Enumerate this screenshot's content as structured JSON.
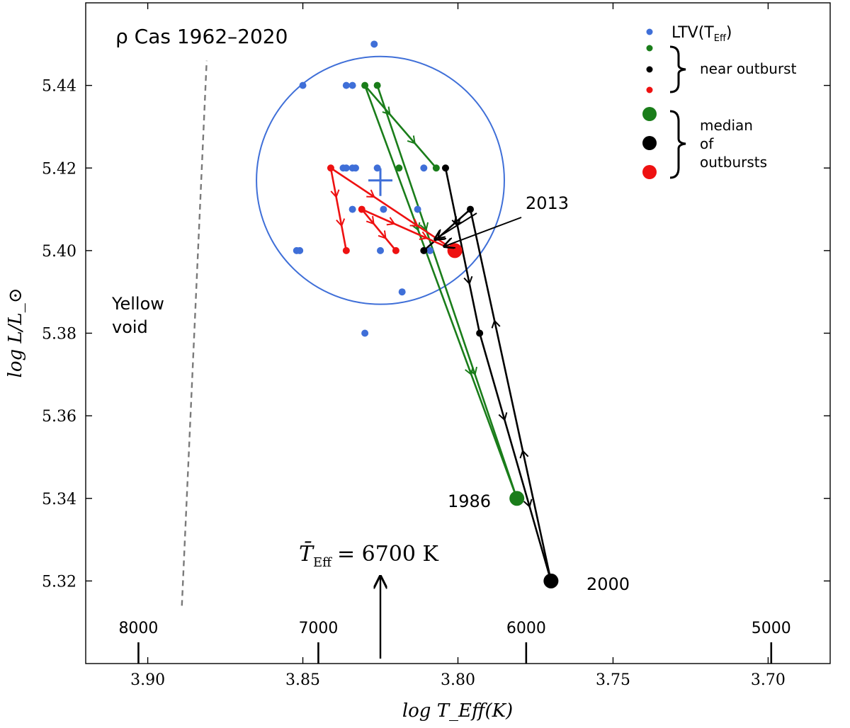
{
  "chart_data": {
    "type": "scatter",
    "title": "ρ Cas 1962–2020",
    "xlabel": "log T_Eff(K)",
    "ylabel": "log L/L_⊙",
    "xlim": [
      3.92,
      3.68
    ],
    "ylim": [
      5.3,
      5.46
    ],
    "x_ticks": [
      "3.90",
      "3.85",
      "3.80",
      "3.75",
      "3.70"
    ],
    "x_tick_values": [
      3.9,
      3.85,
      3.8,
      3.75,
      3.7
    ],
    "y_ticks": [
      "5.32",
      "5.34",
      "5.36",
      "5.38",
      "5.40",
      "5.42",
      "5.44"
    ],
    "y_tick_values": [
      5.32,
      5.34,
      5.36,
      5.38,
      5.4,
      5.42,
      5.44
    ],
    "temperature_scale": [
      {
        "label": "8000",
        "logT": 3.903
      },
      {
        "label": "7000",
        "logT": 3.845
      },
      {
        "label": "6000",
        "logT": 3.778
      },
      {
        "label": "5000",
        "logT": 3.699
      }
    ],
    "ltv_points": [
      [
        3.827,
        5.45
      ],
      [
        3.85,
        5.44
      ],
      [
        3.836,
        5.44
      ],
      [
        3.834,
        5.44
      ],
      [
        3.837,
        5.42
      ],
      [
        3.836,
        5.42
      ],
      [
        3.834,
        5.42
      ],
      [
        3.833,
        5.42
      ],
      [
        3.826,
        5.42
      ],
      [
        3.811,
        5.42
      ],
      [
        3.834,
        5.41
      ],
      [
        3.824,
        5.41
      ],
      [
        3.813,
        5.41
      ],
      [
        3.852,
        5.4
      ],
      [
        3.851,
        5.4
      ],
      [
        3.825,
        5.4
      ],
      [
        3.809,
        5.4
      ],
      [
        3.802,
        5.4
      ],
      [
        3.818,
        5.39
      ],
      [
        3.83,
        5.38
      ]
    ],
    "ltv_center": {
      "logT": 3.825,
      "logL": 5.417
    },
    "ltv_circle": {
      "center_logT": 3.825,
      "center_logL": 5.417,
      "radius_logL": 0.03
    },
    "series": [
      {
        "name": "outburst 1986 (green)",
        "color": "#1a7d1a",
        "near_outburst": [
          [
            3.83,
            5.44
          ],
          [
            3.826,
            5.44
          ],
          [
            3.819,
            5.42
          ],
          [
            3.807,
            5.42
          ]
        ],
        "median": [
          3.781,
          5.34
        ],
        "tracks": [
          {
            "from": [
              3.83,
              5.44
            ],
            "to": [
              3.781,
              5.34
            ]
          },
          {
            "from": [
              3.826,
              5.44
            ],
            "to": [
              3.781,
              5.34
            ]
          },
          {
            "from": [
              3.83,
              5.44
            ],
            "to": [
              3.807,
              5.42
            ]
          }
        ]
      },
      {
        "name": "outburst 2000 (black)",
        "color": "#000000",
        "near_outburst": [
          [
            3.804,
            5.42
          ],
          [
            3.796,
            5.41
          ],
          [
            3.793,
            5.38
          ],
          [
            3.811,
            5.4
          ]
        ],
        "median": [
          3.77,
          5.32
        ],
        "tracks": [
          {
            "from": [
              3.804,
              5.42
            ],
            "to": [
              3.793,
              5.38
            ]
          },
          {
            "from": [
              3.793,
              5.38
            ],
            "to": [
              3.77,
              5.32
            ]
          },
          {
            "from": [
              3.77,
              5.32
            ],
            "to": [
              3.796,
              5.41
            ]
          },
          {
            "from": [
              3.796,
              5.41
            ],
            "to": [
              3.811,
              5.4
            ]
          }
        ]
      },
      {
        "name": "outburst 2013 (red)",
        "color": "#ee1111",
        "near_outburst": [
          [
            3.841,
            5.42
          ],
          [
            3.836,
            5.4
          ],
          [
            3.831,
            5.41
          ],
          [
            3.82,
            5.4
          ]
        ],
        "median": [
          3.801,
          5.4
        ],
        "tracks": [
          {
            "from": [
              3.841,
              5.42
            ],
            "to": [
              3.836,
              5.4
            ]
          },
          {
            "from": [
              3.841,
              5.42
            ],
            "to": [
              3.801,
              5.4
            ]
          },
          {
            "from": [
              3.831,
              5.41
            ],
            "to": [
              3.82,
              5.4
            ]
          },
          {
            "from": [
              3.831,
              5.41
            ],
            "to": [
              3.801,
              5.4
            ]
          }
        ]
      }
    ],
    "annotations": {
      "label_1986": "1986",
      "label_2000": "2000",
      "label_2013": "2013",
      "yellow_void_line1": "Yellow",
      "yellow_void_line2": "void",
      "mean_temp_lhs": "T̄",
      "mean_temp_sub": "Eff",
      "mean_temp_rhs": "= 6700 K",
      "mean_temp_logT": 3.825
    },
    "yellow_void_boundary": [
      [
        3.889,
        5.314
      ],
      [
        3.881,
        5.446
      ]
    ],
    "legend": {
      "position": "top-right",
      "ltv_label": "LTV(T",
      "ltv_sub": "Eff",
      "ltv_close": ")",
      "near_outburst_label": "near outburst",
      "median_line1": "median",
      "median_line2": "of",
      "median_line3": "outbursts"
    },
    "colors": {
      "ltv": "#3f6fd8",
      "green": "#1a7d1a",
      "black": "#000000",
      "red": "#ee1111",
      "void_line": "#7a7a7a"
    }
  }
}
